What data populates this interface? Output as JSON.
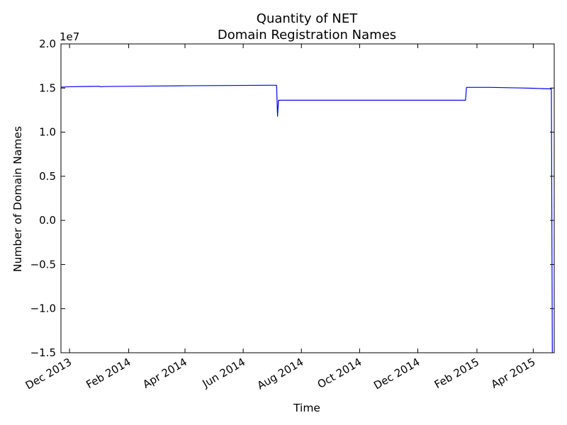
{
  "chart_data": {
    "type": "line",
    "title_line1": "Quantity of NET",
    "title_line2": "Domain Registration Names",
    "xlabel": "Time",
    "ylabel": "Number of Domain Names",
    "y_offset_label": "1e7",
    "y_scale": 10000000,
    "ylim": [
      -15000000,
      20000000
    ],
    "xlim": [
      "2013-11-22",
      "2015-04-23"
    ],
    "y_ticks": [
      -15000000,
      -10000000,
      -5000000,
      0,
      5000000,
      10000000,
      15000000,
      20000000
    ],
    "y_tick_labels": [
      "−1.5",
      "−1.0",
      "−0.5",
      "0.0",
      "0.5",
      "1.0",
      "1.5",
      "2.0"
    ],
    "x_ticks": [
      "2013-12-01",
      "2014-02-01",
      "2014-04-01",
      "2014-06-01",
      "2014-08-01",
      "2014-10-01",
      "2014-12-01",
      "2015-02-01",
      "2015-04-01"
    ],
    "x_tick_labels": [
      "Dec 2013",
      "Feb 2014",
      "Apr 2014",
      "Jun 2014",
      "Aug 2014",
      "Oct 2014",
      "Dec 2014",
      "Feb 2015",
      "Apr 2015"
    ],
    "grid": false,
    "line_color": "#0000ff",
    "series": [
      {
        "x": [
          "2013-11-22",
          "2013-12-01",
          "2014-01-01",
          "2014-01-02",
          "2014-01-10",
          "2014-02-01",
          "2014-03-01",
          "2014-04-01",
          "2014-05-01",
          "2014-06-01",
          "2014-07-01",
          "2014-07-06",
          "2014-07-07",
          "2014-07-08",
          "2014-07-09",
          "2014-08-01",
          "2014-10-01",
          "2014-12-01",
          "2015-01-20",
          "2015-01-21",
          "2015-01-22",
          "2015-02-15",
          "2015-03-15",
          "2015-04-01",
          "2015-04-19",
          "2015-04-20",
          "2015-04-21"
        ],
        "y": [
          15100000,
          15150000,
          15200000,
          15150000,
          15180000,
          15200000,
          15230000,
          15260000,
          15280000,
          15300000,
          15320000,
          15310000,
          11800000,
          13600000,
          13620000,
          13620000,
          13620000,
          13620000,
          13620000,
          15050000,
          15080000,
          15080000,
          15020000,
          14970000,
          14900000,
          14900000,
          -15000000
        ]
      }
    ]
  }
}
